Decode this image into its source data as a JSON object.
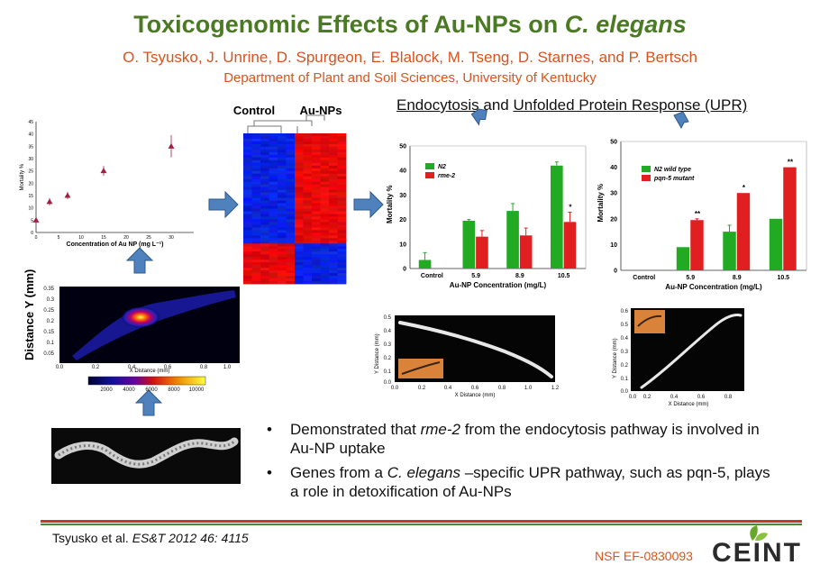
{
  "title": {
    "prefix": "Toxicogenomic Effects of Au-NPs on ",
    "species": "C. elegans"
  },
  "authors": "O. Tsyusko, J.  Unrine, D. Spurgeon, E. Blalock, M. Tseng, D. Starnes, and P. Bertsch",
  "department": "Department of Plant and Soil Sciences, University of Kentucky",
  "section_heading": {
    "part1": "Endocytosis",
    "joiner": " and ",
    "part2": "Unfolded Protein Response (UPR)"
  },
  "heatmap": {
    "label_control": "Control",
    "label_treated": "Au-NPs"
  },
  "distance_map": {
    "ylabel": "Distance Y (mm)",
    "xlabel": "X Distance (mm)",
    "colorbar_ticks": [
      "2000",
      "4000",
      "6000",
      "8000",
      "10000"
    ]
  },
  "worm_plot_a": {
    "xlabel": "X Distance (mm)",
    "ylabel": "Y Distance (mm)"
  },
  "worm_plot_b": {
    "xlabel": "X Distance (mm)",
    "ylabel": "Y Distance (mm)"
  },
  "bullets": [
    {
      "pre": "Demonstrated that ",
      "em": "rme-2",
      "post": " from the endocytosis pathway is involved in Au-NP uptake"
    },
    {
      "pre": "Genes from a ",
      "em": "C. elegans",
      "post": " –specific UPR pathway, such as pqn-5, plays a role in detoxification of Au-NPs"
    }
  ],
  "citation": {
    "text": "Tsyusko et al. ",
    "journal": "ES&T 2012 46: 4115"
  },
  "grant": "NSF EF-0830093",
  "logo": "CEINT",
  "colors": {
    "title": "#4a7a22",
    "author": "#d9531e",
    "arrow": "#4f81bd",
    "bar_green": "#22aa22",
    "bar_red": "#e02020",
    "marker": "#a02040"
  },
  "chart_data": [
    {
      "type": "scatter",
      "xlabel": "Concentration of Au NP (mg L⁻¹)",
      "ylabel": "Mortality %",
      "x": [
        0,
        3,
        7,
        15,
        30
      ],
      "y": [
        5,
        12.5,
        15,
        25,
        35
      ],
      "error": [
        1,
        1.5,
        1.5,
        2,
        4.5
      ],
      "xlim": [
        0,
        35
      ],
      "ylim": [
        0,
        45
      ],
      "xticks": [
        0,
        5,
        10,
        15,
        20,
        25,
        30
      ],
      "yticks": [
        0,
        5,
        10,
        15,
        20,
        25,
        30,
        35,
        40,
        45
      ]
    },
    {
      "type": "bar",
      "xlabel": "Au-NP Concentration (mg/L)",
      "ylabel": "Mortality %",
      "categories": [
        "Control",
        "5.9",
        "8.9",
        "10.5"
      ],
      "series": [
        {
          "name": "N2",
          "values": [
            3.5,
            19.5,
            23.5,
            42
          ],
          "error": [
            3,
            0.5,
            3,
            1.5
          ]
        },
        {
          "name": "rme-2",
          "values": [
            0,
            13,
            13.5,
            19
          ],
          "error": [
            0,
            2.5,
            3,
            4
          ]
        }
      ],
      "annotations": [
        {
          "category": "10.5",
          "text": "*"
        }
      ],
      "ylim": [
        0,
        50
      ],
      "yticks": [
        0,
        10,
        20,
        30,
        40,
        50
      ],
      "legend": "top-left"
    },
    {
      "type": "bar",
      "xlabel": "Au-NP Concentration (mg/L)",
      "ylabel": "Mortality %",
      "categories": [
        "Control",
        "5.9",
        "8.9",
        "10.5"
      ],
      "series": [
        {
          "name": "N2 wild type",
          "values": [
            0,
            9,
            15,
            20
          ],
          "error": [
            0,
            0,
            2.5,
            0
          ]
        },
        {
          "name": "pqn-5 mutant",
          "values": [
            0,
            19.5,
            30,
            40
          ],
          "error": [
            0,
            0.5,
            0,
            0
          ]
        }
      ],
      "annotations": [
        {
          "category": "5.9",
          "text": "**"
        },
        {
          "category": "8.9",
          "text": "*"
        },
        {
          "category": "10.5",
          "text": "**"
        }
      ],
      "ylim": [
        0,
        50
      ],
      "yticks": [
        0,
        10,
        20,
        30,
        40,
        50
      ],
      "legend": "top-left"
    }
  ]
}
